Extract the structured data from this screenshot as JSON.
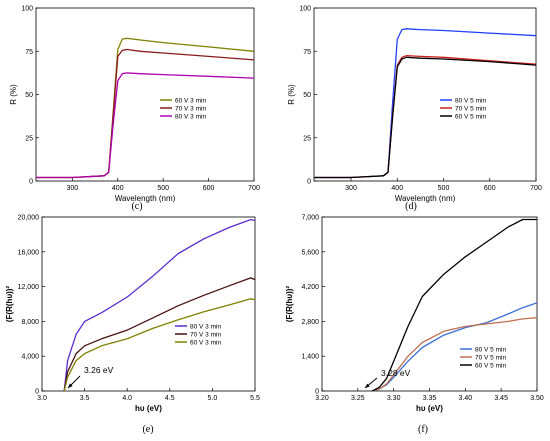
{
  "chart_data": [
    {
      "panel": "c",
      "type": "line",
      "xlabel": "Wavelength (nm)",
      "ylabel": "R (%)",
      "xlim": [
        220,
        700
      ],
      "ylim": [
        0,
        100
      ],
      "xticks": [
        300,
        400,
        500,
        600,
        700
      ],
      "yticks": [
        0,
        25,
        50,
        75,
        100
      ],
      "legend_position": "center-right",
      "series": [
        {
          "name": "60 V 3 min",
          "color": "#808000",
          "x": [
            220,
            300,
            370,
            380,
            390,
            400,
            410,
            420,
            450,
            500,
            600,
            700
          ],
          "y": [
            2,
            2,
            3,
            5,
            40,
            76,
            82,
            82.5,
            81.5,
            80,
            77.5,
            75
          ]
        },
        {
          "name": "70 V 3 min",
          "color": "#8b1a1a",
          "x": [
            220,
            300,
            370,
            380,
            390,
            400,
            410,
            420,
            450,
            500,
            600,
            700
          ],
          "y": [
            2,
            2,
            3,
            5,
            38,
            72,
            75.5,
            76,
            75,
            74,
            72,
            70
          ]
        },
        {
          "name": "80 V 3 min",
          "color": "#b000b0",
          "x": [
            220,
            300,
            370,
            380,
            390,
            400,
            410,
            420,
            450,
            500,
            600,
            700
          ],
          "y": [
            2,
            2,
            3,
            5,
            33,
            58,
            62,
            62.5,
            62,
            61.5,
            60.5,
            59.5
          ]
        }
      ]
    },
    {
      "panel": "d",
      "type": "line",
      "xlabel": "Wavelength (nm)",
      "ylabel": "R (%)",
      "xlim": [
        220,
        700
      ],
      "ylim": [
        0,
        100
      ],
      "xticks": [
        300,
        400,
        500,
        600,
        700
      ],
      "yticks": [
        0,
        25,
        50,
        75,
        100
      ],
      "legend_position": "center-right",
      "series": [
        {
          "name": "80 V 5 min",
          "color": "#2040ff",
          "x": [
            220,
            300,
            370,
            380,
            390,
            400,
            410,
            420,
            450,
            500,
            600,
            700
          ],
          "y": [
            2,
            2,
            3,
            5,
            45,
            82,
            87.5,
            88,
            87.5,
            87,
            85.5,
            84
          ]
        },
        {
          "name": "70 V 5 min",
          "color": "#cc2020",
          "x": [
            220,
            300,
            370,
            380,
            390,
            400,
            410,
            420,
            450,
            500,
            600,
            700
          ],
          "y": [
            2,
            2,
            3,
            5,
            38,
            67,
            71.5,
            72.5,
            72,
            71.5,
            69.5,
            67.5
          ]
        },
        {
          "name": "60 V 5 min",
          "color": "#000000",
          "x": [
            220,
            300,
            370,
            380,
            390,
            400,
            410,
            420,
            450,
            500,
            600,
            700
          ],
          "y": [
            2,
            2,
            3,
            5,
            37,
            66,
            70.5,
            71.5,
            71,
            70.5,
            69,
            67
          ]
        }
      ]
    },
    {
      "panel": "e",
      "type": "line",
      "xlabel": "hυ (eV)",
      "ylabel": "(F(R(hυ))²",
      "xlim": [
        3.0,
        5.5
      ],
      "ylim": [
        0,
        20000
      ],
      "xticks": [
        "3.0",
        "3.5",
        "4.0",
        "4.5",
        "5.0",
        "5.5"
      ],
      "yticks": [
        "0",
        "4,000",
        "8,000",
        "12,000",
        "16,000",
        "20,000"
      ],
      "legend_position": "center-right",
      "annotation": "3.26 eV",
      "series": [
        {
          "name": "80 V 3 min",
          "color": "#5b2ccc",
          "x": [
            3.26,
            3.3,
            3.4,
            3.5,
            3.7,
            4.0,
            4.3,
            4.6,
            4.9,
            5.2,
            5.45,
            5.5
          ],
          "y": [
            0,
            3500,
            6500,
            8000,
            9000,
            10800,
            13200,
            15800,
            17500,
            18800,
            19700,
            19600
          ]
        },
        {
          "name": "70 V 3 min",
          "color": "#4a0f0f",
          "x": [
            3.26,
            3.3,
            3.4,
            3.5,
            3.7,
            4.0,
            4.3,
            4.6,
            4.9,
            5.2,
            5.45,
            5.5
          ],
          "y": [
            0,
            2200,
            4300,
            5200,
            6000,
            7000,
            8400,
            9800,
            11000,
            12100,
            13000,
            12800
          ]
        },
        {
          "name": "60 V 3 min",
          "color": "#808000",
          "x": [
            3.26,
            3.3,
            3.4,
            3.5,
            3.7,
            4.0,
            4.3,
            4.6,
            4.9,
            5.2,
            5.45,
            5.5
          ],
          "y": [
            0,
            1600,
            3500,
            4300,
            5200,
            6000,
            7200,
            8200,
            9100,
            9900,
            10600,
            10500
          ]
        }
      ]
    },
    {
      "panel": "f",
      "type": "line",
      "xlabel": "hυ (eV)",
      "ylabel": "(F(R(hυ))²",
      "xlim": [
        3.2,
        3.5
      ],
      "ylim": [
        0,
        7000
      ],
      "xticks": [
        "3.20",
        "3.25",
        "3.30",
        "3.35",
        "3.40",
        "3.45",
        "3.50"
      ],
      "yticks": [
        "0",
        "1,400",
        "2,800",
        "4,200",
        "5,600",
        "7,000"
      ],
      "legend_position": "bottom-right",
      "annotation": "3.28 eV",
      "series": [
        {
          "name": "80 V 5 min",
          "color": "#3a6fd8",
          "x": [
            3.27,
            3.28,
            3.29,
            3.3,
            3.32,
            3.34,
            3.37,
            3.4,
            3.43,
            3.46,
            3.48,
            3.5
          ],
          "y": [
            0,
            80,
            250,
            550,
            1200,
            1750,
            2250,
            2550,
            2750,
            3100,
            3350,
            3550
          ]
        },
        {
          "name": "70 V 5 min",
          "color": "#c07050",
          "x": [
            3.27,
            3.28,
            3.29,
            3.3,
            3.32,
            3.34,
            3.37,
            3.4,
            3.43,
            3.46,
            3.48,
            3.5
          ],
          "y": [
            0,
            80,
            280,
            650,
            1400,
            1950,
            2400,
            2600,
            2700,
            2800,
            2900,
            2950
          ]
        },
        {
          "name": "60 V 5 min",
          "color": "#000000",
          "x": [
            3.27,
            3.28,
            3.29,
            3.3,
            3.32,
            3.34,
            3.37,
            3.4,
            3.43,
            3.46,
            3.48,
            3.5
          ],
          "y": [
            0,
            150,
            500,
            1200,
            2600,
            3800,
            4700,
            5400,
            6000,
            6600,
            6900,
            6900
          ]
        }
      ]
    }
  ]
}
